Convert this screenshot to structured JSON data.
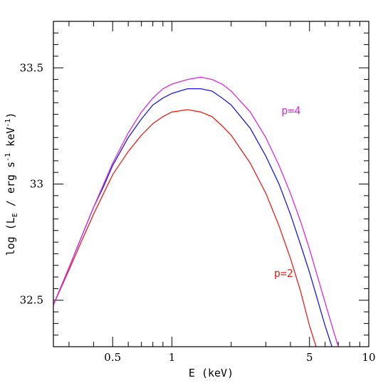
{
  "chart_data": {
    "type": "line",
    "xscale": "log",
    "xlim": [
      0.25,
      10
    ],
    "ylim": [
      32.3,
      33.7
    ],
    "xlabel": "E (keV)",
    "ylabel": {
      "prefix": "log (L",
      "sub": "E",
      "middle": " / erg s",
      "sup1": "-1",
      "middle2": " keV",
      "sup2": "-1",
      "suffix": ")"
    },
    "x_ticklabels": [
      {
        "value": 0.5,
        "label": "0.5"
      },
      {
        "value": 1,
        "label": "1"
      },
      {
        "value": 5,
        "label": "5"
      },
      {
        "value": 10,
        "label": "10"
      }
    ],
    "y_ticklabels": [
      {
        "value": 32.5,
        "label": "32.5"
      },
      {
        "value": 33,
        "label": "33"
      },
      {
        "value": 33.5,
        "label": "33.5"
      }
    ],
    "series": [
      {
        "name": "p=2",
        "color": "#e8221b",
        "label_at": [
          3.3,
          32.6
        ],
        "points": [
          [
            0.25,
            32.48
          ],
          [
            0.3,
            32.63
          ],
          [
            0.35,
            32.76
          ],
          [
            0.4,
            32.87
          ],
          [
            0.45,
            32.96
          ],
          [
            0.5,
            33.04
          ],
          [
            0.6,
            33.14
          ],
          [
            0.7,
            33.21
          ],
          [
            0.8,
            33.26
          ],
          [
            0.9,
            33.29
          ],
          [
            1.0,
            33.31
          ],
          [
            1.2,
            33.32
          ],
          [
            1.4,
            33.31
          ],
          [
            1.6,
            33.29
          ],
          [
            1.8,
            33.25
          ],
          [
            2.0,
            33.21
          ],
          [
            2.5,
            33.09
          ],
          [
            3.0,
            32.96
          ],
          [
            3.5,
            32.82
          ],
          [
            4.0,
            32.68
          ],
          [
            4.5,
            32.54
          ],
          [
            5.0,
            32.39
          ],
          [
            5.4,
            32.3
          ]
        ]
      },
      {
        "name": "",
        "color": "#1a1ae0",
        "points": [
          [
            0.25,
            32.48
          ],
          [
            0.3,
            32.64
          ],
          [
            0.35,
            32.78
          ],
          [
            0.4,
            32.9
          ],
          [
            0.45,
            32.99
          ],
          [
            0.5,
            33.08
          ],
          [
            0.6,
            33.2
          ],
          [
            0.7,
            33.28
          ],
          [
            0.8,
            33.34
          ],
          [
            0.9,
            33.37
          ],
          [
            1.0,
            33.39
          ],
          [
            1.2,
            33.41
          ],
          [
            1.4,
            33.41
          ],
          [
            1.6,
            33.4
          ],
          [
            1.8,
            33.37
          ],
          [
            2.0,
            33.34
          ],
          [
            2.5,
            33.24
          ],
          [
            3.0,
            33.12
          ],
          [
            3.5,
            33.0
          ],
          [
            4.0,
            32.87
          ],
          [
            4.5,
            32.74
          ],
          [
            5.0,
            32.62
          ],
          [
            5.5,
            32.5
          ],
          [
            6.0,
            32.39
          ],
          [
            6.5,
            32.3
          ]
        ]
      },
      {
        "name": "p=4",
        "color": "#dd2ad8",
        "label_at": [
          3.6,
          33.3
        ],
        "points": [
          [
            0.25,
            32.48
          ],
          [
            0.3,
            32.64
          ],
          [
            0.35,
            32.78
          ],
          [
            0.4,
            32.9
          ],
          [
            0.45,
            33.0
          ],
          [
            0.5,
            33.09
          ],
          [
            0.6,
            33.22
          ],
          [
            0.7,
            33.31
          ],
          [
            0.8,
            33.37
          ],
          [
            0.9,
            33.41
          ],
          [
            1.0,
            33.43
          ],
          [
            1.2,
            33.45
          ],
          [
            1.4,
            33.46
          ],
          [
            1.6,
            33.45
          ],
          [
            1.8,
            33.43
          ],
          [
            2.0,
            33.4
          ],
          [
            2.5,
            33.31
          ],
          [
            3.0,
            33.2
          ],
          [
            3.5,
            33.08
          ],
          [
            4.0,
            32.96
          ],
          [
            4.5,
            32.84
          ],
          [
            5.0,
            32.72
          ],
          [
            5.5,
            32.6
          ],
          [
            6.0,
            32.49
          ],
          [
            6.5,
            32.39
          ],
          [
            7.0,
            32.3
          ]
        ]
      }
    ]
  }
}
